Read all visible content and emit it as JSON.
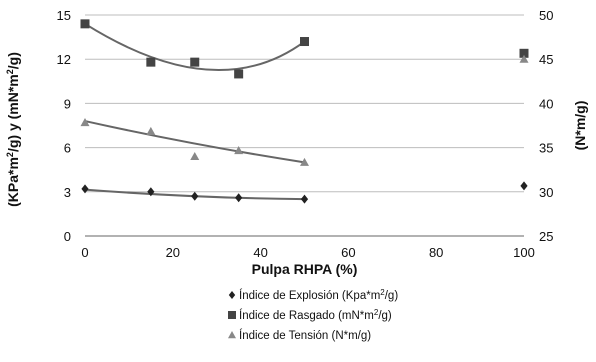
{
  "chart_data": {
    "type": "scatter",
    "xlabel": "Pulpa RHPA (%)",
    "ylabel_left_parts": [
      "(KPa*m",
      "2",
      "/g) y (mN*m",
      "2",
      "/g)"
    ],
    "ylabel_right": "(N*m/g)",
    "xlim": [
      0,
      100
    ],
    "xticks": [
      0,
      20,
      40,
      60,
      80,
      100
    ],
    "ylim_left": [
      0,
      15
    ],
    "yticks_left": [
      0,
      3,
      6,
      9,
      12,
      15
    ],
    "ylim_right": [
      25,
      50
    ],
    "yticks_right": [
      25,
      30,
      35,
      40,
      45,
      50
    ],
    "grid": "horizontal",
    "legend_position": "bottom",
    "series": [
      {
        "key": "explosion",
        "name_parts": [
          "Índice de Explosión (Kpa*m",
          "2",
          "/g)"
        ],
        "marker": "diamond",
        "axis": "left",
        "x": [
          0,
          15,
          25,
          35,
          50
        ],
        "y": [
          3.2,
          3.0,
          2.7,
          2.6,
          2.5
        ],
        "trend": [
          0,
          3.15,
          50,
          2.5
        ],
        "outlier": {
          "x": 100,
          "y": 3.4
        }
      },
      {
        "key": "rasgado",
        "name_parts": [
          "Índice de Rasgado (mN*m",
          "2",
          "/g)"
        ],
        "marker": "square",
        "axis": "left",
        "x": [
          0,
          15,
          25,
          35,
          50
        ],
        "y": [
          14.4,
          11.8,
          11.8,
          11.0,
          13.2
        ],
        "trend": [
          0,
          14.4,
          30,
          11.3,
          50,
          13.2
        ],
        "outlier": {
          "x": 100,
          "y": 12.4
        }
      },
      {
        "key": "tension",
        "name_parts": [
          "Índice de Tensión (N*m/g)"
        ],
        "marker": "triangle",
        "axis": "left",
        "x": [
          0,
          15,
          25,
          35,
          50
        ],
        "y": [
          7.7,
          7.1,
          5.4,
          5.8,
          5.0
        ],
        "trend": [
          0,
          7.8,
          50,
          5.0
        ],
        "outlier": {
          "x": 100,
          "y": 12.0
        }
      }
    ]
  }
}
